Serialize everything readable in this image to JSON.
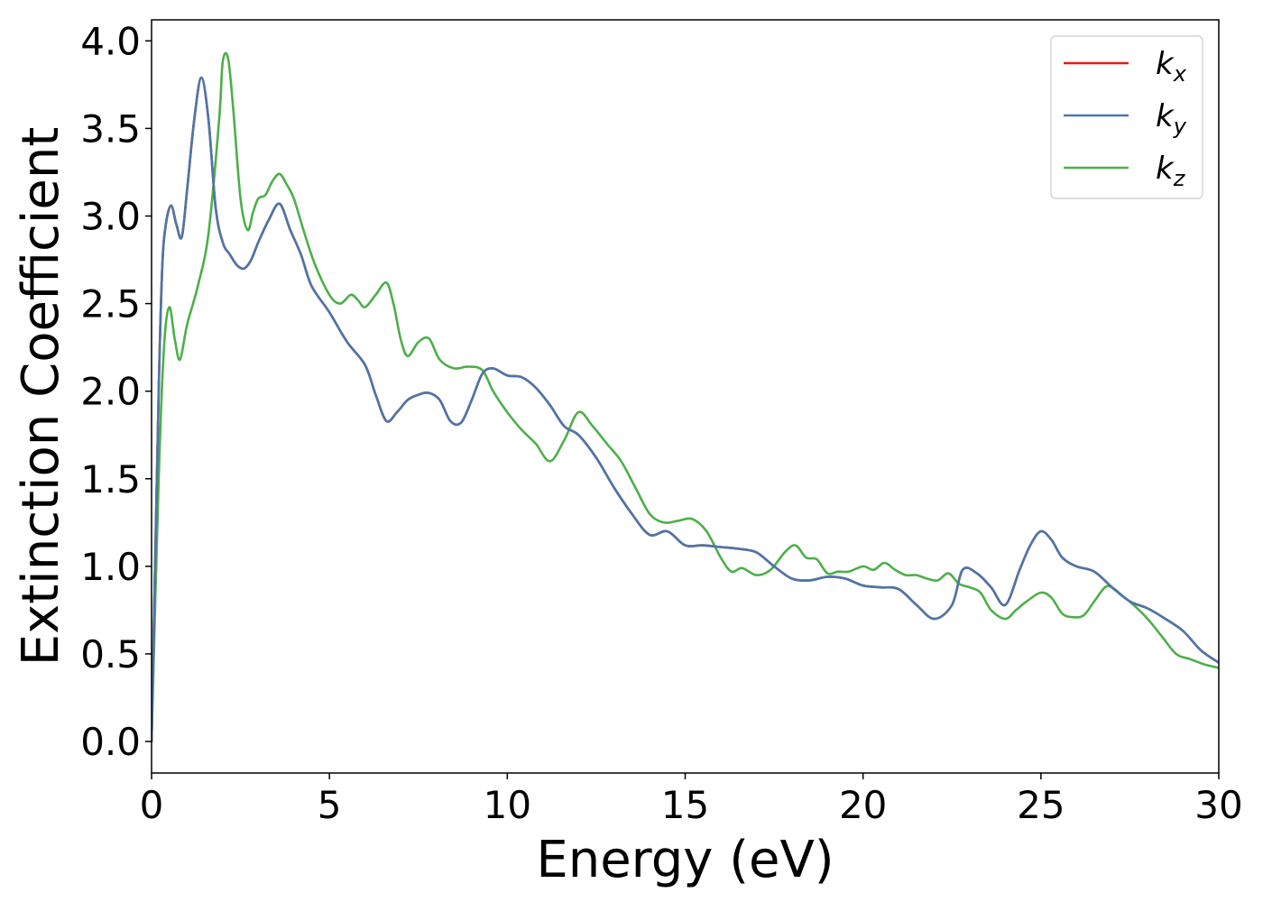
{
  "chart_data": {
    "type": "line",
    "title": "",
    "xlabel": "Energy (eV)",
    "ylabel": "Extinction Coefficient",
    "xlim": [
      0,
      30
    ],
    "ylim": [
      -0.18,
      4.12
    ],
    "xticks": [
      0,
      5,
      10,
      15,
      20,
      25,
      30
    ],
    "xtick_labels": [
      "0",
      "5",
      "10",
      "15",
      "20",
      "25",
      "30"
    ],
    "yticks": [
      0.0,
      0.5,
      1.0,
      1.5,
      2.0,
      2.5,
      3.0,
      3.5,
      4.0
    ],
    "ytick_labels": [
      "0.0",
      "0.5",
      "1.0",
      "1.5",
      "2.0",
      "2.5",
      "3.0",
      "3.5",
      "4.0"
    ],
    "grid": false,
    "legend_position": "top-right",
    "colors": {
      "kx": "#e41a1c",
      "ky": "#4a77aa",
      "kz": "#4daf4a"
    },
    "series": [
      {
        "name": "kx",
        "legend_main": "k",
        "legend_sub": "x",
        "color": "#e41a1c",
        "x": [
          0,
          0.2,
          0.3,
          0.4,
          0.55,
          0.7,
          0.85,
          1.0,
          1.2,
          1.4,
          1.6,
          1.8,
          2.0,
          2.2,
          2.4,
          2.6,
          2.8,
          3.0,
          3.3,
          3.6,
          3.9,
          4.2,
          4.5,
          5.0,
          5.5,
          6.0,
          6.3,
          6.6,
          6.9,
          7.2,
          7.5,
          7.8,
          8.1,
          8.4,
          8.7,
          9.0,
          9.3,
          9.6,
          10.0,
          10.4,
          10.8,
          11.2,
          11.6,
          12.0,
          12.5,
          13.0,
          13.5,
          14.0,
          14.5,
          15.0,
          15.5,
          16.0,
          16.5,
          17.0,
          17.5,
          18.0,
          18.5,
          19.0,
          19.5,
          20.0,
          20.5,
          21.0,
          21.5,
          22.0,
          22.5,
          22.8,
          23.2,
          23.6,
          24.0,
          24.4,
          24.7,
          25.0,
          25.3,
          25.6,
          26.0,
          26.5,
          27.0,
          27.5,
          28.0,
          28.5,
          29.0,
          29.5,
          30.0
        ],
        "y": [
          0.0,
          2.0,
          2.7,
          2.95,
          3.06,
          2.95,
          2.88,
          3.15,
          3.55,
          3.79,
          3.55,
          3.05,
          2.85,
          2.78,
          2.72,
          2.7,
          2.75,
          2.85,
          2.98,
          3.07,
          2.92,
          2.78,
          2.6,
          2.45,
          2.28,
          2.15,
          1.98,
          1.83,
          1.88,
          1.95,
          1.98,
          1.99,
          1.95,
          1.83,
          1.82,
          1.95,
          2.1,
          2.13,
          2.09,
          2.08,
          2.02,
          1.92,
          1.8,
          1.75,
          1.62,
          1.45,
          1.3,
          1.18,
          1.2,
          1.12,
          1.12,
          1.11,
          1.1,
          1.08,
          1.0,
          0.93,
          0.92,
          0.94,
          0.93,
          0.89,
          0.88,
          0.87,
          0.78,
          0.7,
          0.78,
          0.98,
          0.96,
          0.88,
          0.78,
          0.98,
          1.12,
          1.2,
          1.15,
          1.05,
          1.0,
          0.97,
          0.88,
          0.8,
          0.76,
          0.7,
          0.63,
          0.52,
          0.45
        ]
      },
      {
        "name": "ky",
        "legend_main": "k",
        "legend_sub": "y",
        "color": "#4a77aa",
        "x": [
          0,
          0.2,
          0.3,
          0.4,
          0.55,
          0.7,
          0.85,
          1.0,
          1.2,
          1.4,
          1.6,
          1.8,
          2.0,
          2.2,
          2.4,
          2.6,
          2.8,
          3.0,
          3.3,
          3.6,
          3.9,
          4.2,
          4.5,
          5.0,
          5.5,
          6.0,
          6.3,
          6.6,
          6.9,
          7.2,
          7.5,
          7.8,
          8.1,
          8.4,
          8.7,
          9.0,
          9.3,
          9.6,
          10.0,
          10.4,
          10.8,
          11.2,
          11.6,
          12.0,
          12.5,
          13.0,
          13.5,
          14.0,
          14.5,
          15.0,
          15.5,
          16.0,
          16.5,
          17.0,
          17.5,
          18.0,
          18.5,
          19.0,
          19.5,
          20.0,
          20.5,
          21.0,
          21.5,
          22.0,
          22.5,
          22.8,
          23.2,
          23.6,
          24.0,
          24.4,
          24.7,
          25.0,
          25.3,
          25.6,
          26.0,
          26.5,
          27.0,
          27.5,
          28.0,
          28.5,
          29.0,
          29.5,
          30.0
        ],
        "y": [
          0.0,
          2.0,
          2.7,
          2.95,
          3.06,
          2.95,
          2.88,
          3.15,
          3.55,
          3.79,
          3.55,
          3.05,
          2.85,
          2.78,
          2.72,
          2.7,
          2.75,
          2.85,
          2.98,
          3.07,
          2.92,
          2.78,
          2.6,
          2.45,
          2.28,
          2.15,
          1.98,
          1.83,
          1.88,
          1.95,
          1.98,
          1.99,
          1.95,
          1.83,
          1.82,
          1.95,
          2.1,
          2.13,
          2.09,
          2.08,
          2.02,
          1.92,
          1.8,
          1.75,
          1.62,
          1.45,
          1.3,
          1.18,
          1.2,
          1.12,
          1.12,
          1.11,
          1.1,
          1.08,
          1.0,
          0.93,
          0.92,
          0.94,
          0.93,
          0.89,
          0.88,
          0.87,
          0.78,
          0.7,
          0.78,
          0.98,
          0.96,
          0.88,
          0.78,
          0.98,
          1.12,
          1.2,
          1.15,
          1.05,
          1.0,
          0.97,
          0.88,
          0.8,
          0.76,
          0.7,
          0.63,
          0.52,
          0.45
        ]
      },
      {
        "name": "kz",
        "legend_main": "k",
        "legend_sub": "z",
        "color": "#4daf4a",
        "x": [
          0,
          0.2,
          0.35,
          0.5,
          0.65,
          0.8,
          1.0,
          1.3,
          1.6,
          1.9,
          2.0,
          2.15,
          2.3,
          2.5,
          2.7,
          2.85,
          3.0,
          3.2,
          3.4,
          3.6,
          3.8,
          4.0,
          4.3,
          4.6,
          5.0,
          5.3,
          5.6,
          5.8,
          6.0,
          6.3,
          6.6,
          6.8,
          7.0,
          7.2,
          7.5,
          7.8,
          8.1,
          8.5,
          8.9,
          9.3,
          9.6,
          10.0,
          10.4,
          10.8,
          11.2,
          11.6,
          12.0,
          12.4,
          12.8,
          13.2,
          13.6,
          14.0,
          14.4,
          14.8,
          15.2,
          15.6,
          16.0,
          16.3,
          16.6,
          17.0,
          17.4,
          17.8,
          18.1,
          18.4,
          18.7,
          19.0,
          19.3,
          19.6,
          20.0,
          20.3,
          20.6,
          20.9,
          21.2,
          21.5,
          21.8,
          22.1,
          22.4,
          22.7,
          23.0,
          23.3,
          23.6,
          24.0,
          24.3,
          24.6,
          25.0,
          25.3,
          25.6,
          25.9,
          26.2,
          26.5,
          26.8,
          27.0,
          27.3,
          27.6,
          28.0,
          28.4,
          28.8,
          29.2,
          29.6,
          30.0
        ],
        "y": [
          0.0,
          1.5,
          2.25,
          2.48,
          2.3,
          2.18,
          2.38,
          2.6,
          2.9,
          3.55,
          3.88,
          3.9,
          3.6,
          3.1,
          2.92,
          3.02,
          3.1,
          3.12,
          3.2,
          3.24,
          3.18,
          3.1,
          2.9,
          2.72,
          2.55,
          2.5,
          2.55,
          2.52,
          2.48,
          2.55,
          2.62,
          2.5,
          2.3,
          2.2,
          2.28,
          2.3,
          2.18,
          2.13,
          2.14,
          2.12,
          2.0,
          1.88,
          1.78,
          1.7,
          1.6,
          1.72,
          1.88,
          1.8,
          1.7,
          1.6,
          1.45,
          1.3,
          1.25,
          1.26,
          1.27,
          1.2,
          1.05,
          0.97,
          0.99,
          0.95,
          0.98,
          1.08,
          1.12,
          1.05,
          1.04,
          0.96,
          0.97,
          0.97,
          1.0,
          0.98,
          1.02,
          0.98,
          0.95,
          0.95,
          0.93,
          0.92,
          0.96,
          0.9,
          0.88,
          0.85,
          0.75,
          0.7,
          0.75,
          0.8,
          0.85,
          0.82,
          0.73,
          0.71,
          0.72,
          0.8,
          0.88,
          0.88,
          0.83,
          0.78,
          0.7,
          0.6,
          0.5,
          0.47,
          0.44,
          0.42
        ]
      }
    ]
  }
}
